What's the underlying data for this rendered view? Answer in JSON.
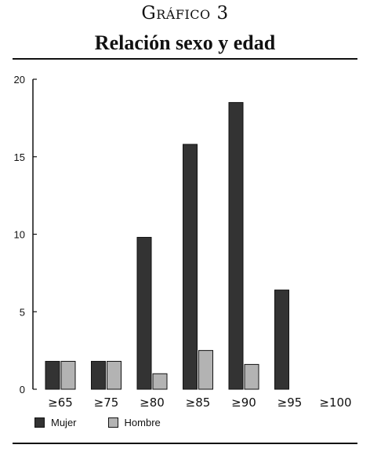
{
  "header": {
    "kicker": "Gráfico 3",
    "title": "Relación sexo y edad"
  },
  "colors": {
    "Mujer": "#333333",
    "Hombre": "#b3b3b3",
    "axis": "#111111"
  },
  "chart_data": {
    "type": "bar",
    "title": "Relación sexo y edad",
    "categories": [
      "≥65",
      "≥75",
      "≥80",
      "≥85",
      "≥90",
      "≥95",
      "≥100"
    ],
    "series": [
      {
        "name": "Mujer",
        "values": [
          1.8,
          1.8,
          9.8,
          15.8,
          18.5,
          6.4,
          0
        ]
      },
      {
        "name": "Hombre",
        "values": [
          1.8,
          1.8,
          1.0,
          2.5,
          1.6,
          0,
          0
        ]
      }
    ],
    "ylim": [
      0,
      20
    ],
    "yticks": [
      0,
      5,
      10,
      15,
      20
    ],
    "xlabel": "",
    "ylabel": "",
    "grid": false,
    "legend": "bottom-left"
  }
}
